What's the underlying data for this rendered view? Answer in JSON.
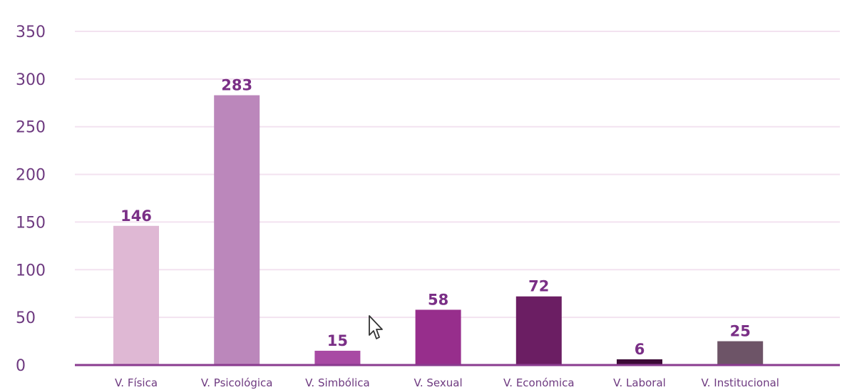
{
  "chart_data": {
    "type": "bar",
    "categories": [
      "V. Física",
      "V. Psicológica",
      "V. Simbólica",
      "V. Sexual",
      "V. Económica",
      "V. Laboral",
      "V. Institucional"
    ],
    "values": [
      146,
      283,
      15,
      58,
      72,
      6,
      25
    ],
    "data_labels": [
      "146",
      "283",
      "15",
      "58",
      "72",
      "6",
      "25"
    ],
    "colors": [
      "#dfb8d4",
      "#bb87bb",
      "#a84aa4",
      "#972e8c",
      "#6b1e63",
      "#3b0a36",
      "#6d5467"
    ],
    "y_ticks": [
      "0",
      "50",
      "100",
      "150",
      "200",
      "250",
      "300",
      "350"
    ],
    "ylim": [
      0,
      350
    ],
    "grid": true,
    "title": "",
    "xlabel": "",
    "ylabel": ""
  }
}
